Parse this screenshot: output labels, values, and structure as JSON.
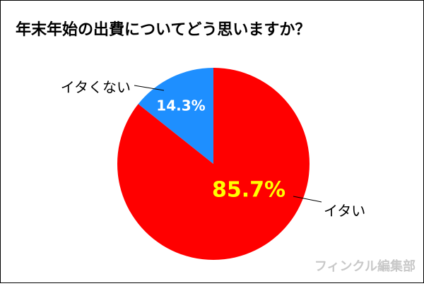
{
  "chart_data": {
    "type": "pie",
    "title": "年末年始の出費についてどう思いますか？",
    "categories": [
      "イタい",
      "イタくない"
    ],
    "values": [
      85.7,
      14.3
    ],
    "value_labels": [
      "85.7%",
      "14.3%"
    ],
    "colors": [
      "#ff0000",
      "#1e8fff"
    ],
    "value_label_colors": [
      "#ffff00",
      "#ffffff"
    ],
    "start_angle": "top",
    "direction": "clockwise",
    "watermark": "フィンクル編集部"
  }
}
